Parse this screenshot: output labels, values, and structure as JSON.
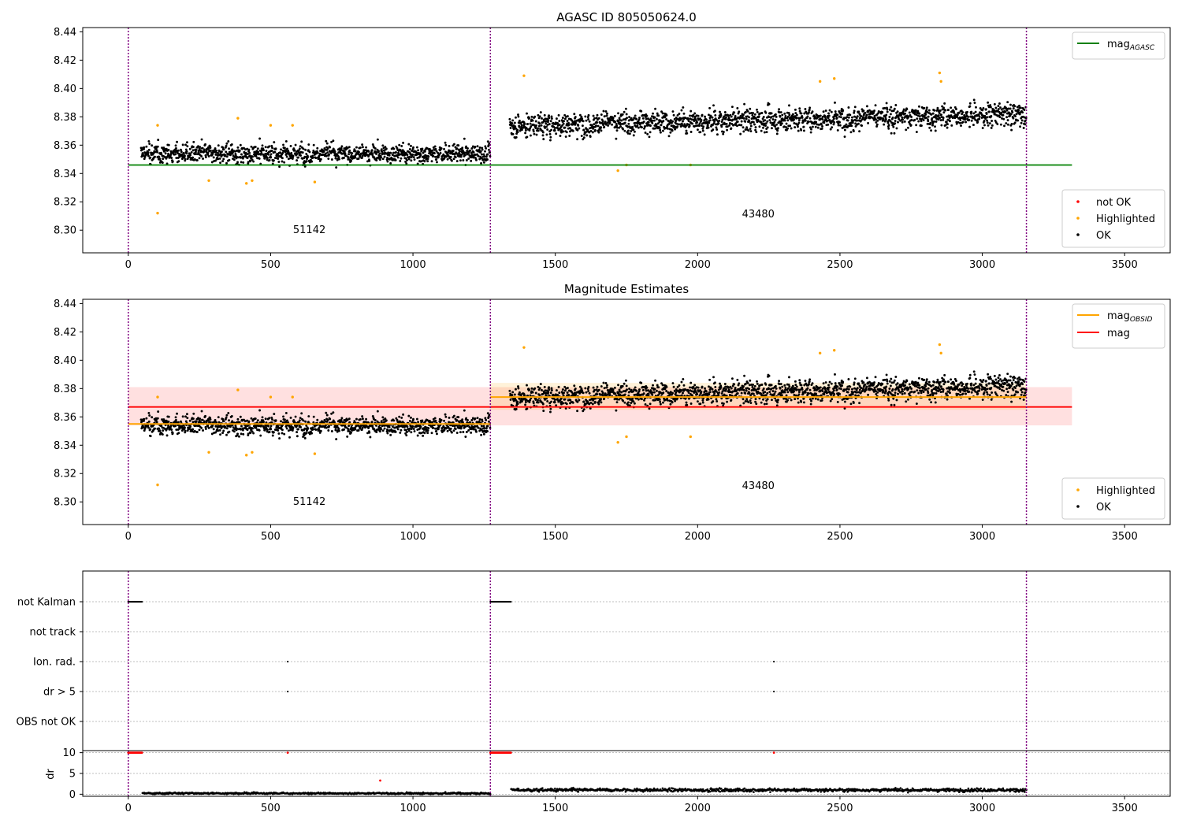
{
  "chart_data": [
    {
      "type": "scatter",
      "title": "AGASC ID 805050624.0",
      "xlim": [
        -160,
        3660
      ],
      "ylim": [
        8.284,
        8.443
      ],
      "xticks": [
        0,
        500,
        1000,
        1500,
        2000,
        2500,
        3000,
        3500
      ],
      "yticks": [
        8.3,
        8.32,
        8.34,
        8.36,
        8.38,
        8.4,
        8.42,
        8.44
      ],
      "vlines": [
        0,
        1272,
        3155
      ],
      "obsids": [
        {
          "label": "51142",
          "x": 636,
          "y": 8.298
        },
        {
          "label": "43480",
          "x": 2213,
          "y": 8.309
        }
      ],
      "lines": [
        {
          "name": "mag_AGASC",
          "color": "#008000",
          "y": 8.346,
          "x": [
            0,
            3315
          ]
        }
      ],
      "legend_lines": {
        "position": "upper right",
        "entries": [
          {
            "label": "mag",
            "sub": "AGASC",
            "color": "#008000"
          }
        ]
      },
      "legend_points": {
        "position": "lower right",
        "entries": [
          {
            "label": "not OK",
            "color": "#ff0000"
          },
          {
            "label": "Highlighted",
            "color": "#ffa500"
          },
          {
            "label": "OK",
            "color": "#000000"
          }
        ]
      },
      "segments": [
        {
          "x": [
            45,
            1272
          ],
          "mean": 8.354,
          "amp": 0.008,
          "trend": 0.0
        },
        {
          "x": [
            1340,
            3155
          ],
          "mean": 8.374,
          "amp": 0.01,
          "trend": 0.008
        }
      ],
      "highlighted": [
        [
          103,
          8.312
        ],
        [
          103,
          8.374
        ],
        [
          283,
          8.335
        ],
        [
          385,
          8.379
        ],
        [
          415,
          8.333
        ],
        [
          435,
          8.335
        ],
        [
          500,
          8.374
        ],
        [
          577,
          8.374
        ],
        [
          655,
          8.334
        ],
        [
          1390,
          8.409
        ],
        [
          1720,
          8.342
        ],
        [
          1750,
          8.346
        ],
        [
          1975,
          8.346
        ],
        [
          2430,
          8.405
        ],
        [
          2480,
          8.407
        ],
        [
          2850,
          8.411
        ],
        [
          2855,
          8.405
        ]
      ]
    },
    {
      "type": "scatter",
      "title": "Magnitude Estimates",
      "xlim": [
        -160,
        3660
      ],
      "ylim": [
        8.284,
        8.443
      ],
      "xticks": [
        0,
        500,
        1000,
        1500,
        2000,
        2500,
        3000,
        3500
      ],
      "yticks": [
        8.3,
        8.32,
        8.34,
        8.36,
        8.38,
        8.4,
        8.42,
        8.44
      ],
      "vlines": [
        0,
        1272,
        3155
      ],
      "obsids": [
        {
          "label": "51142",
          "x": 636,
          "y": 8.298
        },
        {
          "label": "43480",
          "x": 2213,
          "y": 8.309
        }
      ],
      "lines": [
        {
          "name": "mag_OBSID",
          "color": "#ffa500",
          "segments": [
            {
              "x": [
                0,
                1272
              ],
              "y": 8.355
            },
            {
              "x": [
                1272,
                3155
              ],
              "y": 8.374
            }
          ]
        },
        {
          "name": "mag",
          "color": "#ff0000",
          "y": 8.367,
          "x": [
            0,
            3315
          ]
        }
      ],
      "bands": [
        {
          "color": "#ff0000",
          "x": [
            0,
            3315
          ],
          "y": [
            8.354,
            8.381
          ],
          "alpha": 0.12
        },
        {
          "color": "#ffa500",
          "x": [
            1272,
            3155
          ],
          "y": [
            8.365,
            8.384
          ],
          "alpha": 0.15
        }
      ],
      "legend_lines": {
        "position": "upper right",
        "entries": [
          {
            "label": "mag",
            "sub": "OBSID",
            "color": "#ffa500"
          },
          {
            "label": "mag",
            "sub": "",
            "color": "#ff0000"
          }
        ]
      },
      "legend_points": {
        "position": "lower right",
        "entries": [
          {
            "label": "Highlighted",
            "color": "#ffa500"
          },
          {
            "label": "OK",
            "color": "#000000"
          }
        ]
      }
    },
    {
      "type": "scatter",
      "title": "",
      "xlim": [
        -160,
        3660
      ],
      "xticks": [
        0,
        500,
        1000,
        1500,
        2000,
        2500,
        3000,
        3500
      ],
      "vlines": [
        0,
        1272,
        3155
      ],
      "flag_rows": [
        "not Kalman",
        "not track",
        "Ion. rad.",
        "dr > 5",
        "OBS not OK"
      ],
      "flag_points": [
        {
          "row": "not Kalman",
          "x_ranges": [
            [
              0,
              50
            ],
            [
              1272,
              1345
            ]
          ]
        },
        {
          "row": "Ion. rad.",
          "x": [
            560,
            2268
          ]
        },
        {
          "row": "dr > 5",
          "x": [
            560,
            2268
          ]
        }
      ],
      "dr": {
        "ylabel": "dr",
        "ylim": [
          -0.5,
          10.5
        ],
        "yticks": [
          0,
          5,
          10
        ],
        "red_points": [
          [
            0,
            50,
            10
          ],
          [
            1272,
            1345,
            10
          ],
          [
            560,
            560,
            10
          ],
          [
            2268,
            2268,
            10
          ],
          [
            885,
            885,
            3.3
          ]
        ],
        "segments": [
          {
            "x": [
              50,
              1272
            ],
            "mean": 0.2
          },
          {
            "x": [
              1345,
              3155
            ],
            "mean": 1.0
          }
        ]
      }
    }
  ]
}
